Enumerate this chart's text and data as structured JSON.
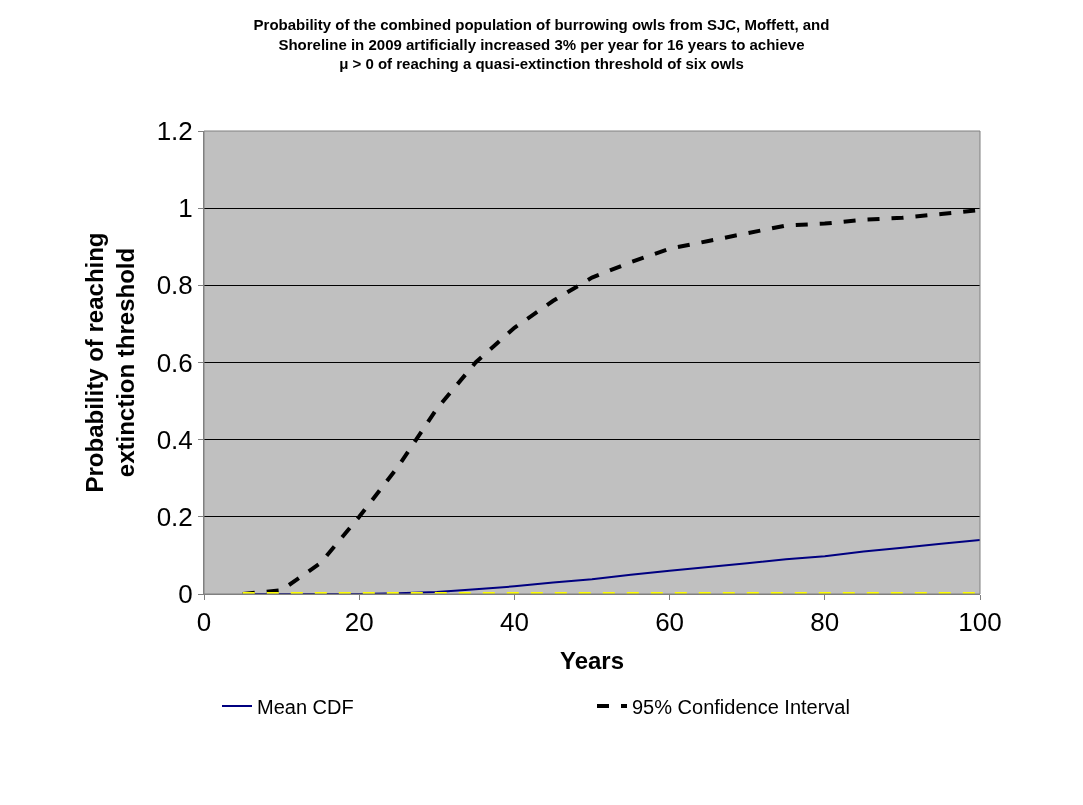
{
  "chart_data": {
    "type": "line",
    "title": "Probability of the combined population of burrowing owls from SJC, Moffett, and\nShoreline in 2009 artificially increased 3% per year for 16 years to achieve\nμ > 0 of reaching a quasi-extinction threshold of six owls",
    "xlabel": "Years",
    "ylabel": "Probability of reaching\nextinction threshold",
    "x": [
      5,
      10,
      15,
      20,
      25,
      30,
      35,
      40,
      45,
      50,
      55,
      60,
      65,
      70,
      75,
      80,
      85,
      90,
      95,
      100
    ],
    "series": [
      {
        "name": "Mean CDF",
        "color": "#000080",
        "line_style": "solid",
        "values": [
          0,
          0,
          0,
          0,
          0.002,
          0.005,
          0.012,
          0.02,
          0.03,
          0.038,
          0.05,
          0.06,
          0.07,
          0.08,
          0.09,
          0.098,
          0.11,
          0.12,
          0.13,
          0.14
        ]
      },
      {
        "name": "95% Confidence Interval",
        "color": "#000000",
        "line_style": "dashed",
        "values": [
          0,
          0.01,
          0.08,
          0.2,
          0.33,
          0.48,
          0.6,
          0.69,
          0.76,
          0.82,
          0.86,
          0.895,
          0.915,
          0.935,
          0.955,
          0.96,
          0.97,
          0.975,
          0.985,
          0.995
        ]
      },
      {
        "color": "#ffff00",
        "line_style": "dashed",
        "values": [
          0,
          0,
          0,
          0,
          0,
          0,
          0,
          0,
          0,
          0,
          0,
          0,
          0,
          0,
          0,
          0,
          0,
          0,
          0,
          0
        ]
      }
    ],
    "xlim": [
      0,
      100
    ],
    "xticks": [
      0,
      20,
      40,
      60,
      80,
      100
    ],
    "ylim": [
      0,
      1.2
    ],
    "yticks": [
      0,
      0.2,
      0.4,
      0.6,
      0.8,
      1,
      1.2
    ],
    "grid": "y",
    "legend": "bottom",
    "marker": "none"
  }
}
